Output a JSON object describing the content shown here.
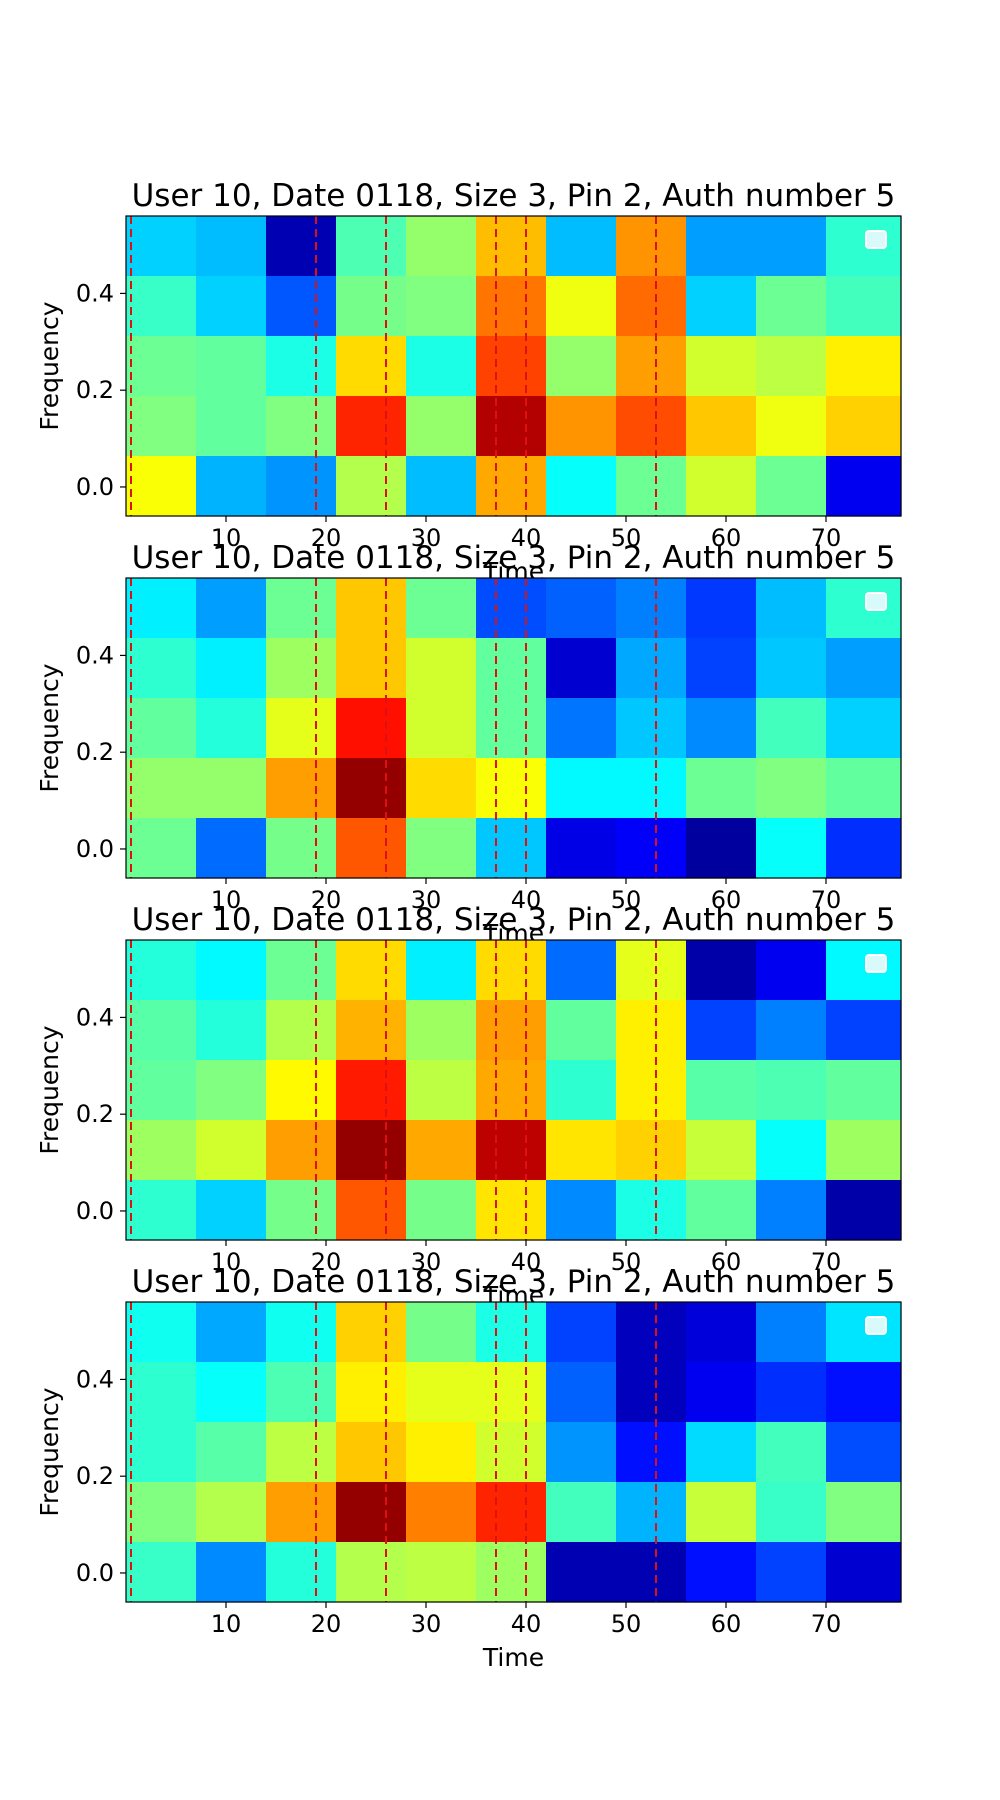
{
  "colors": {
    "threshold_line": "#dd1111",
    "colormap": "jet",
    "legend_patch": "#d9fafa"
  },
  "chart_data": [
    {
      "type": "heatmap",
      "title": "User 10, Date 0118, Size 3, Pin 2, Auth number 5",
      "xlabel": "Time",
      "ylabel": "Frequency",
      "x_ticks": [
        10,
        20,
        30,
        40,
        50,
        60,
        70
      ],
      "y_ticks": [
        0.0,
        0.2,
        0.4
      ],
      "x_range": [
        0,
        77.5
      ],
      "y_range": [
        -0.06,
        0.56
      ],
      "x_edges": [
        0,
        7,
        14,
        21,
        28,
        35,
        42,
        49,
        56,
        63,
        70,
        77.5
      ],
      "vlines": [
        0.5,
        19,
        26,
        37,
        40,
        53
      ],
      "rows_top_to_bottom": [
        [
          0.33,
          0.31,
          0.05,
          0.45,
          0.52,
          0.69,
          0.31,
          0.73,
          0.28,
          0.28,
          0.42
        ],
        [
          0.43,
          0.33,
          0.21,
          0.49,
          0.5,
          0.76,
          0.61,
          0.77,
          0.33,
          0.48,
          0.44
        ],
        [
          0.48,
          0.47,
          0.4,
          0.66,
          0.4,
          0.81,
          0.52,
          0.72,
          0.58,
          0.56,
          0.64
        ],
        [
          0.5,
          0.47,
          0.5,
          0.84,
          0.52,
          0.95,
          0.73,
          0.8,
          0.68,
          0.61,
          0.67
        ],
        [
          0.62,
          0.3,
          0.27,
          0.55,
          0.31,
          0.71,
          0.38,
          0.48,
          0.58,
          0.48,
          0.11
        ]
      ]
    },
    {
      "type": "heatmap",
      "title": "User 10, Date 0118, Size 3, Pin 2, Auth number 5",
      "xlabel": "Time",
      "ylabel": "Frequency",
      "x_ticks": [
        10,
        20,
        30,
        40,
        50,
        60,
        70
      ],
      "y_ticks": [
        0.0,
        0.2,
        0.4
      ],
      "x_range": [
        0,
        77.5
      ],
      "y_range": [
        -0.06,
        0.56
      ],
      "x_edges": [
        0,
        7,
        14,
        21,
        28,
        35,
        42,
        49,
        56,
        63,
        70,
        77.5
      ],
      "vlines": [
        0.5,
        19,
        26,
        37,
        40,
        53
      ],
      "rows_top_to_bottom": [
        [
          0.36,
          0.28,
          0.48,
          0.68,
          0.48,
          0.2,
          0.22,
          0.25,
          0.18,
          0.31,
          0.42
        ],
        [
          0.42,
          0.36,
          0.53,
          0.68,
          0.58,
          0.47,
          0.08,
          0.29,
          0.19,
          0.32,
          0.28
        ],
        [
          0.47,
          0.41,
          0.6,
          0.86,
          0.58,
          0.47,
          0.24,
          0.32,
          0.26,
          0.44,
          0.33
        ],
        [
          0.52,
          0.52,
          0.72,
          0.98,
          0.66,
          0.62,
          0.37,
          0.37,
          0.48,
          0.5,
          0.47
        ],
        [
          0.48,
          0.23,
          0.49,
          0.79,
          0.5,
          0.32,
          0.1,
          0.12,
          0.03,
          0.38,
          0.17
        ]
      ]
    },
    {
      "type": "heatmap",
      "title": "User 10, Date 0118, Size 3, Pin 2, Auth number 5",
      "xlabel": "Time",
      "ylabel": "Frequency",
      "x_ticks": [
        10,
        20,
        30,
        40,
        50,
        60,
        70
      ],
      "y_ticks": [
        0.0,
        0.2,
        0.4
      ],
      "x_range": [
        0,
        77.5
      ],
      "y_range": [
        -0.06,
        0.56
      ],
      "x_edges": [
        0,
        7,
        14,
        21,
        28,
        35,
        42,
        49,
        56,
        63,
        70,
        77.5
      ],
      "vlines": [
        0.5,
        19,
        26,
        37,
        40,
        53
      ],
      "rows_top_to_bottom": [
        [
          0.41,
          0.37,
          0.48,
          0.66,
          0.36,
          0.66,
          0.23,
          0.6,
          0.04,
          0.11,
          0.37
        ],
        [
          0.46,
          0.41,
          0.55,
          0.7,
          0.53,
          0.72,
          0.47,
          0.64,
          0.19,
          0.25,
          0.19
        ],
        [
          0.47,
          0.5,
          0.63,
          0.85,
          0.56,
          0.71,
          0.42,
          0.64,
          0.46,
          0.45,
          0.47
        ],
        [
          0.53,
          0.58,
          0.72,
          0.98,
          0.71,
          0.94,
          0.65,
          0.67,
          0.57,
          0.38,
          0.53
        ],
        [
          0.42,
          0.33,
          0.49,
          0.79,
          0.49,
          0.65,
          0.26,
          0.4,
          0.47,
          0.25,
          0.04
        ]
      ]
    },
    {
      "type": "heatmap",
      "title": "User 10, Date 0118, Size 3, Pin 2, Auth number 5",
      "xlabel": "Time",
      "ylabel": "Frequency",
      "x_ticks": [
        10,
        20,
        30,
        40,
        50,
        60,
        70
      ],
      "y_ticks": [
        0.0,
        0.2,
        0.4
      ],
      "x_range": [
        0,
        77.5
      ],
      "y_range": [
        -0.06,
        0.56
      ],
      "x_edges": [
        0,
        7,
        14,
        21,
        28,
        35,
        42,
        49,
        56,
        63,
        70,
        77.5
      ],
      "vlines": [
        0.5,
        19,
        26,
        37,
        40,
        53
      ],
      "rows_top_to_bottom": [
        [
          0.39,
          0.29,
          0.39,
          0.67,
          0.49,
          0.4,
          0.19,
          0.06,
          0.09,
          0.25,
          0.35
        ],
        [
          0.42,
          0.38,
          0.45,
          0.64,
          0.6,
          0.6,
          0.22,
          0.06,
          0.11,
          0.17,
          0.14
        ],
        [
          0.42,
          0.46,
          0.56,
          0.68,
          0.64,
          0.58,
          0.27,
          0.14,
          0.34,
          0.44,
          0.2
        ],
        [
          0.5,
          0.55,
          0.72,
          0.98,
          0.75,
          0.84,
          0.44,
          0.3,
          0.57,
          0.43,
          0.5
        ],
        [
          0.43,
          0.26,
          0.41,
          0.55,
          0.56,
          0.53,
          0.05,
          0.05,
          0.14,
          0.19,
          0.08
        ]
      ]
    }
  ]
}
